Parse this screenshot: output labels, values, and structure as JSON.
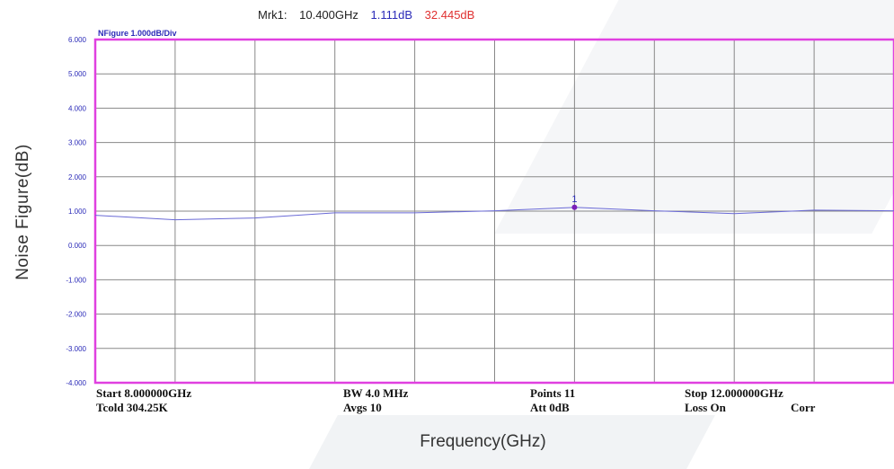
{
  "marker": {
    "label": "Mrk1:",
    "frequency": "10.400GHz",
    "value_db": "1.111dB",
    "value_secondary": "32.445dB"
  },
  "scale_label": "NFigure   1.000dB/Div",
  "footer": {
    "start": "Start   8.000000GHz",
    "tcold": "Tcold  304.25K",
    "bw": "BW  4.0  MHz",
    "avgs": "Avgs  10",
    "points": "Points  11",
    "att": "Att  0dB",
    "stop": "Stop  12.000000GHz",
    "loss": "Loss  On",
    "corr": "Corr"
  },
  "chart_data": {
    "type": "line",
    "title": "",
    "xlabel": "Frequency(GHz)",
    "ylabel": "Noise Figure(dB)",
    "xlim": [
      8.0,
      12.0
    ],
    "ylim": [
      -4.0,
      6.0
    ],
    "yticks": [
      "6.000",
      "5.000",
      "4.000",
      "3.000",
      "2.000",
      "1.000",
      "0.000",
      "-1.000",
      "-2.000",
      "-3.000",
      "-4.000"
    ],
    "grid": true,
    "colors": {
      "trace": "#6a6ad6",
      "frame": "#e040e0",
      "grid": "#888888",
      "marker": "#7a1fb8",
      "ticks": "#2a2ab8"
    },
    "series": [
      {
        "x": [
          8.0,
          8.4,
          8.8,
          9.2,
          9.6,
          10.0,
          10.4,
          10.8,
          11.2,
          11.6,
          12.0
        ],
        "values": [
          0.88,
          0.75,
          0.8,
          0.95,
          0.95,
          1.01,
          1.111,
          1.01,
          0.93,
          1.03,
          1.01
        ]
      }
    ],
    "marker": {
      "label": "1",
      "x": 10.4,
      "y": 1.111
    }
  }
}
